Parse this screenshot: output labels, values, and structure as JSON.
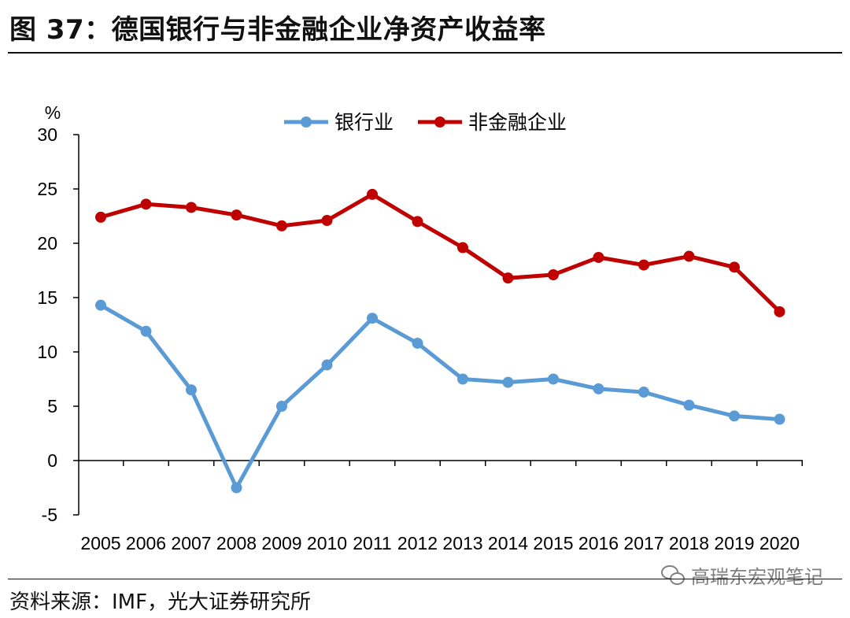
{
  "header": {
    "title": "图 37：德国银行与非金融企业净资产收益率"
  },
  "footer": {
    "source": "资料来源：IMF，光大证券研究所",
    "watermark": "高瑞东宏观笔记",
    "watermark_icon": "wechat-icon"
  },
  "chart_data": {
    "type": "line",
    "title": "",
    "xlabel": "",
    "ylabel": "%",
    "ylim": [
      -5,
      30
    ],
    "yticks": [
      "-5",
      "0",
      "5",
      "10",
      "15",
      "20",
      "25",
      "30"
    ],
    "categories": [
      "2005",
      "2006",
      "2007",
      "2008",
      "2009",
      "2010",
      "2011",
      "2012",
      "2013",
      "2014",
      "2015",
      "2016",
      "2017",
      "2018",
      "2019",
      "2020"
    ],
    "grid": false,
    "legend_position": "top",
    "series": [
      {
        "name": "银行业",
        "color": "#5b9bd5",
        "values": [
          14.3,
          11.9,
          6.5,
          -2.5,
          5.0,
          8.8,
          13.1,
          10.8,
          7.5,
          7.2,
          7.5,
          6.6,
          6.3,
          5.1,
          4.1,
          3.8
        ]
      },
      {
        "name": "非金融企业",
        "color": "#c00000",
        "values": [
          22.4,
          23.6,
          23.3,
          22.6,
          21.6,
          22.1,
          24.5,
          22.0,
          19.6,
          16.8,
          17.1,
          18.7,
          18.0,
          18.8,
          17.8,
          13.7
        ]
      }
    ]
  }
}
